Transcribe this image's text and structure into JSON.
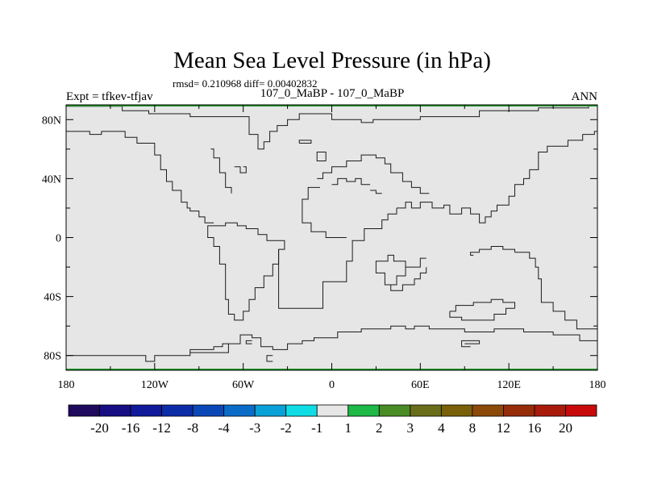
{
  "title": "Mean Sea Level Pressure (in hPa)",
  "stats_line": "rmsd= 0.210968 diff= 0.00402832",
  "experiment_label": "Expt = tfkev-tfjav",
  "comparison_label": "107_0_MaBP - 107_0_MaBP",
  "season_label": "ANN",
  "colors": {
    "field_fill": "#e6e6e6",
    "coastline": "#1a1a1a",
    "frame": "#000000",
    "edge_accent": "#1f9a2a"
  },
  "axes": {
    "lon_ticks": [
      {
        "value": -180,
        "label": "180"
      },
      {
        "value": -120,
        "label": "120W"
      },
      {
        "value": -60,
        "label": "60W"
      },
      {
        "value": 0,
        "label": "0"
      },
      {
        "value": 60,
        "label": "60E"
      },
      {
        "value": 120,
        "label": "120E"
      },
      {
        "value": 180,
        "label": "180"
      }
    ],
    "lat_ticks": [
      {
        "value": 80,
        "label": "80N"
      },
      {
        "value": 40,
        "label": "40N"
      },
      {
        "value": 0,
        "label": "0"
      },
      {
        "value": -40,
        "label": "40S"
      },
      {
        "value": -80,
        "label": "80S"
      }
    ],
    "lon_range": [
      -180,
      180
    ],
    "lat_range": [
      -90,
      90
    ]
  },
  "colorbar": {
    "colors": [
      "#1f0a5e",
      "#160e82",
      "#111a9a",
      "#0d2ca8",
      "#0a48b8",
      "#0a6cc8",
      "#0aa0d8",
      "#10dce6",
      "#e6e6e6",
      "#1eb946",
      "#4a8c24",
      "#6a6e18",
      "#7a6008",
      "#8c4a08",
      "#962c08",
      "#a81a0a",
      "#c80a0a"
    ],
    "labels": [
      "-20",
      "-16",
      "-12",
      "-8",
      "-4",
      "-3",
      "-2",
      "-1",
      "1",
      "2",
      "3",
      "4",
      "8",
      "12",
      "16",
      "20"
    ]
  },
  "coastlines": [
    [
      [
        -180,
        89
      ],
      [
        -142,
        89
      ],
      [
        -142,
        86
      ],
      [
        -124,
        86
      ],
      [
        -124,
        84
      ],
      [
        -96,
        84
      ],
      [
        -96,
        82
      ],
      [
        -56,
        82
      ],
      [
        -56,
        70
      ],
      [
        -50,
        70
      ],
      [
        -50,
        60
      ],
      [
        -46,
        60
      ],
      [
        -46,
        65
      ],
      [
        -42,
        65
      ],
      [
        -42,
        72
      ],
      [
        -37,
        72
      ],
      [
        -37,
        76
      ],
      [
        -30,
        76
      ],
      [
        -30,
        80
      ],
      [
        -22,
        80
      ],
      [
        -22,
        84
      ],
      [
        0,
        84
      ],
      [
        0,
        80
      ],
      [
        20,
        80
      ],
      [
        20,
        78
      ],
      [
        28,
        78
      ],
      [
        28,
        80
      ],
      [
        60,
        80
      ],
      [
        60,
        82
      ],
      [
        100,
        82
      ],
      [
        100,
        86
      ],
      [
        140,
        86
      ],
      [
        140,
        88
      ],
      [
        174,
        88
      ],
      [
        174,
        90
      ],
      [
        180,
        90
      ]
    ],
    [
      [
        -180,
        72
      ],
      [
        -164,
        72
      ],
      [
        -164,
        70
      ],
      [
        -156,
        70
      ],
      [
        -156,
        72
      ],
      [
        -140,
        72
      ],
      [
        -140,
        68
      ],
      [
        -132,
        68
      ],
      [
        -132,
        64
      ],
      [
        -120,
        64
      ],
      [
        -120,
        56
      ],
      [
        -116,
        56
      ],
      [
        -116,
        46
      ],
      [
        -112,
        46
      ],
      [
        -112,
        38
      ],
      [
        -108,
        38
      ],
      [
        -108,
        32
      ],
      [
        -102,
        32
      ],
      [
        -102,
        24
      ],
      [
        -98,
        24
      ],
      [
        -98,
        20
      ],
      [
        -96,
        20
      ],
      [
        -96,
        18
      ],
      [
        -90,
        18
      ],
      [
        -90,
        14
      ],
      [
        -86,
        14
      ],
      [
        -86,
        10
      ],
      [
        -80,
        10
      ]
    ],
    [
      [
        -82,
        60
      ],
      [
        -80,
        60
      ],
      [
        -80,
        54
      ],
      [
        -76,
        54
      ],
      [
        -76,
        44
      ],
      [
        -72,
        44
      ],
      [
        -72,
        34
      ],
      [
        -68,
        34
      ],
      [
        -68,
        30
      ]
    ],
    [
      [
        -66,
        48
      ],
      [
        -62,
        48
      ],
      [
        -62,
        44
      ],
      [
        -58,
        44
      ],
      [
        -58,
        48
      ],
      [
        -60,
        48
      ]
    ],
    [
      [
        -80,
        8
      ],
      [
        -84,
        8
      ],
      [
        -84,
        0
      ],
      [
        -80,
        0
      ],
      [
        -80,
        -6
      ],
      [
        -76,
        -6
      ],
      [
        -76,
        -18
      ],
      [
        -72,
        -18
      ],
      [
        -72,
        -42
      ],
      [
        -70,
        -42
      ],
      [
        -70,
        -52
      ],
      [
        -66,
        -52
      ],
      [
        -66,
        -56
      ],
      [
        -60,
        -56
      ],
      [
        -60,
        -50
      ],
      [
        -56,
        -50
      ],
      [
        -56,
        -42
      ],
      [
        -52,
        -42
      ],
      [
        -52,
        -34
      ],
      [
        -46,
        -34
      ],
      [
        -46,
        -26
      ],
      [
        -40,
        -26
      ],
      [
        -40,
        -18
      ],
      [
        -36,
        -18
      ],
      [
        -36,
        -8
      ],
      [
        -32,
        -8
      ],
      [
        -32,
        -2
      ],
      [
        -44,
        -2
      ],
      [
        -44,
        2
      ],
      [
        -50,
        2
      ],
      [
        -50,
        6
      ],
      [
        -58,
        6
      ],
      [
        -58,
        8
      ],
      [
        -64,
        8
      ],
      [
        -64,
        10
      ],
      [
        -72,
        10
      ],
      [
        -72,
        8
      ],
      [
        -80,
        8
      ]
    ],
    [
      [
        -36,
        -8
      ],
      [
        -36,
        -48
      ],
      [
        -6,
        -48
      ],
      [
        -6,
        -30
      ],
      [
        10,
        -30
      ],
      [
        10,
        -16
      ],
      [
        14,
        -16
      ],
      [
        14,
        -2
      ],
      [
        22,
        -2
      ],
      [
        22,
        6
      ],
      [
        34,
        6
      ],
      [
        34,
        12
      ],
      [
        38,
        12
      ],
      [
        38,
        16
      ],
      [
        44,
        16
      ],
      [
        44,
        20
      ]
    ],
    [
      [
        -8,
        34
      ],
      [
        -16,
        34
      ],
      [
        -16,
        26
      ],
      [
        -20,
        26
      ],
      [
        -20,
        10
      ],
      [
        -14,
        10
      ],
      [
        -14,
        4
      ],
      [
        -4,
        4
      ],
      [
        -4,
        0
      ],
      [
        10,
        0
      ]
    ],
    [
      [
        44,
        20
      ],
      [
        50,
        20
      ],
      [
        50,
        24
      ],
      [
        54,
        24
      ],
      [
        54,
        20
      ],
      [
        60,
        20
      ],
      [
        60,
        24
      ],
      [
        68,
        24
      ],
      [
        68,
        20
      ],
      [
        76,
        20
      ],
      [
        76,
        22
      ],
      [
        80,
        22
      ],
      [
        80,
        16
      ],
      [
        88,
        16
      ],
      [
        88,
        20
      ],
      [
        94,
        20
      ],
      [
        94,
        16
      ],
      [
        100,
        16
      ],
      [
        100,
        10
      ],
      [
        104,
        10
      ],
      [
        104,
        14
      ],
      [
        108,
        14
      ],
      [
        108,
        18
      ],
      [
        112,
        18
      ],
      [
        112,
        22
      ],
      [
        120,
        22
      ],
      [
        120,
        28
      ],
      [
        124,
        28
      ],
      [
        124,
        36
      ],
      [
        130,
        36
      ],
      [
        130,
        40
      ],
      [
        134,
        40
      ],
      [
        134,
        46
      ],
      [
        140,
        46
      ],
      [
        140,
        58
      ],
      [
        146,
        58
      ],
      [
        146,
        62
      ],
      [
        160,
        62
      ],
      [
        160,
        66
      ],
      [
        170,
        66
      ],
      [
        170,
        70
      ],
      [
        178,
        70
      ],
      [
        178,
        72
      ],
      [
        180,
        72
      ]
    ],
    [
      [
        -10,
        40
      ],
      [
        -6,
        40
      ],
      [
        -6,
        44
      ],
      [
        0,
        44
      ],
      [
        0,
        48
      ],
      [
        10,
        48
      ],
      [
        10,
        52
      ],
      [
        20,
        52
      ],
      [
        20,
        56
      ],
      [
        30,
        56
      ],
      [
        30,
        54
      ],
      [
        36,
        54
      ],
      [
        36,
        50
      ],
      [
        40,
        50
      ],
      [
        40,
        44
      ],
      [
        48,
        44
      ],
      [
        48,
        38
      ],
      [
        54,
        38
      ],
      [
        54,
        34
      ],
      [
        60,
        34
      ],
      [
        60,
        30
      ],
      [
        66,
        30
      ]
    ],
    [
      [
        -4,
        52
      ],
      [
        -10,
        52
      ],
      [
        -10,
        58
      ],
      [
        -4,
        58
      ],
      [
        -4,
        52
      ]
    ],
    [
      [
        -22,
        64
      ],
      [
        -14,
        64
      ],
      [
        -14,
        66
      ],
      [
        -22,
        66
      ],
      [
        -22,
        64
      ]
    ],
    [
      [
        0,
        36
      ],
      [
        4,
        36
      ],
      [
        4,
        40
      ],
      [
        10,
        40
      ],
      [
        10,
        38
      ],
      [
        16,
        38
      ],
      [
        16,
        40
      ],
      [
        20,
        40
      ],
      [
        20,
        36
      ],
      [
        26,
        36
      ]
    ],
    [
      [
        26,
        32
      ],
      [
        30,
        32
      ],
      [
        30,
        30
      ],
      [
        34,
        30
      ]
    ],
    [
      [
        64,
        -14
      ],
      [
        60,
        -14
      ],
      [
        60,
        -20
      ],
      [
        50,
        -20
      ],
      [
        50,
        -26
      ],
      [
        44,
        -26
      ],
      [
        44,
        -32
      ],
      [
        36,
        -32
      ],
      [
        36,
        -24
      ],
      [
        30,
        -24
      ],
      [
        30,
        -16
      ],
      [
        38,
        -16
      ],
      [
        38,
        -12
      ],
      [
        42,
        -12
      ],
      [
        42,
        -16
      ],
      [
        50,
        -16
      ],
      [
        50,
        -20
      ]
    ],
    [
      [
        36,
        -32
      ],
      [
        40,
        -32
      ],
      [
        40,
        -36
      ],
      [
        48,
        -36
      ],
      [
        48,
        -32
      ],
      [
        56,
        -32
      ],
      [
        56,
        -28
      ],
      [
        60,
        -28
      ],
      [
        60,
        -24
      ],
      [
        64,
        -24
      ],
      [
        64,
        -20
      ]
    ],
    [
      [
        96,
        -12
      ],
      [
        94,
        -12
      ],
      [
        94,
        -10
      ],
      [
        100,
        -10
      ],
      [
        100,
        -8
      ],
      [
        108,
        -8
      ],
      [
        108,
        -6
      ],
      [
        116,
        -6
      ],
      [
        116,
        -8
      ],
      [
        124,
        -8
      ],
      [
        124,
        -10
      ]
    ],
    [
      [
        124,
        -10
      ],
      [
        134,
        -10
      ],
      [
        134,
        -14
      ],
      [
        138,
        -14
      ],
      [
        138,
        -20
      ],
      [
        140,
        -20
      ],
      [
        140,
        -28
      ],
      [
        142,
        -28
      ],
      [
        142,
        -44
      ],
      [
        150,
        -44
      ],
      [
        150,
        -50
      ],
      [
        158,
        -50
      ],
      [
        158,
        -56
      ],
      [
        166,
        -56
      ],
      [
        166,
        -62
      ],
      [
        180,
        -62
      ]
    ],
    [
      [
        80,
        -50
      ],
      [
        84,
        -50
      ],
      [
        84,
        -46
      ],
      [
        96,
        -46
      ],
      [
        96,
        -44
      ],
      [
        108,
        -44
      ],
      [
        108,
        -42
      ],
      [
        116,
        -42
      ],
      [
        116,
        -44
      ],
      [
        124,
        -44
      ],
      [
        124,
        -48
      ]
    ],
    [
      [
        124,
        -48
      ],
      [
        118,
        -48
      ],
      [
        118,
        -52
      ],
      [
        110,
        -52
      ],
      [
        110,
        -56
      ],
      [
        88,
        -56
      ],
      [
        88,
        -54
      ],
      [
        80,
        -54
      ],
      [
        80,
        -50
      ]
    ],
    [
      [
        90,
        -72
      ],
      [
        100,
        -72
      ],
      [
        100,
        -70
      ],
      [
        88,
        -70
      ],
      [
        88,
        -74
      ],
      [
        94,
        -74
      ]
    ],
    [
      [
        -180,
        -80
      ],
      [
        -126,
        -80
      ],
      [
        -126,
        -84
      ],
      [
        -120,
        -84
      ],
      [
        -120,
        -80
      ],
      [
        -96,
        -80
      ],
      [
        -96,
        -78
      ],
      [
        -70,
        -78
      ],
      [
        -70,
        -72
      ],
      [
        -62,
        -72
      ],
      [
        -62,
        -66
      ],
      [
        -54,
        -66
      ],
      [
        -54,
        -68
      ],
      [
        -48,
        -68
      ],
      [
        -48,
        -74
      ],
      [
        -40,
        -74
      ],
      [
        -40,
        -76
      ],
      [
        -30,
        -76
      ],
      [
        -30,
        -72
      ],
      [
        -20,
        -72
      ],
      [
        -20,
        -70
      ],
      [
        -12,
        -70
      ],
      [
        -12,
        -68
      ],
      [
        4,
        -68
      ],
      [
        4,
        -64
      ],
      [
        20,
        -64
      ],
      [
        20,
        -62
      ],
      [
        40,
        -62
      ],
      [
        40,
        -60
      ],
      [
        50,
        -60
      ],
      [
        50,
        -62
      ],
      [
        56,
        -62
      ],
      [
        56,
        -60
      ],
      [
        66,
        -60
      ],
      [
        66,
        -62
      ],
      [
        90,
        -62
      ],
      [
        90,
        -64
      ],
      [
        110,
        -64
      ],
      [
        110,
        -62
      ],
      [
        130,
        -62
      ],
      [
        130,
        -64
      ],
      [
        150,
        -64
      ],
      [
        150,
        -66
      ],
      [
        168,
        -66
      ],
      [
        168,
        -70
      ],
      [
        180,
        -70
      ]
    ],
    [
      [
        -70,
        -72
      ],
      [
        -74,
        -72
      ],
      [
        -74,
        -74
      ],
      [
        -80,
        -74
      ],
      [
        -80,
        -76
      ],
      [
        -96,
        -76
      ],
      [
        -96,
        -78
      ]
    ],
    [
      [
        -54,
        -70
      ],
      [
        -58,
        -70
      ],
      [
        -58,
        -72
      ],
      [
        -54,
        -72
      ]
    ],
    [
      [
        -40,
        -80
      ],
      [
        -44,
        -80
      ],
      [
        -44,
        -84
      ],
      [
        -40,
        -84
      ]
    ]
  ]
}
